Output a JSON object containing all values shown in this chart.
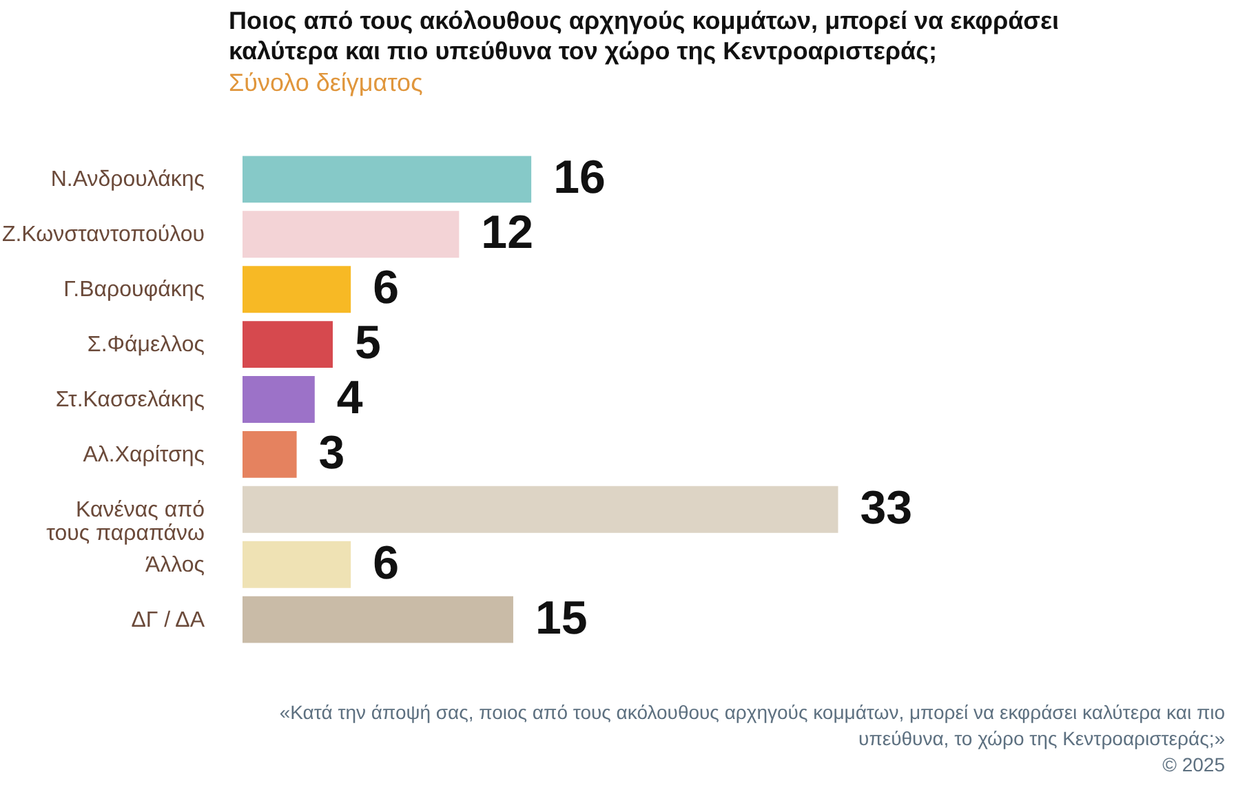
{
  "chart_data": {
    "type": "bar",
    "orientation": "horizontal",
    "title": "Ποιος από τους ακόλουθους αρχηγούς κομμάτων, μπορεί να εκφράσει καλύτερα και πιο υπεύθυνα τον χώρο της Κεντροαριστεράς;",
    "subtitle": "Σύνολο δείγματος",
    "categories": [
      "Ν.Ανδρουλάκης",
      "Ζ.Κωνσταντοπούλου",
      "Γ.Βαρουφάκης",
      "Σ.Φάμελλος",
      "Στ.Κασσελάκης",
      "Αλ.Χαρίτσης",
      "Κανένας από\nτους παραπάνω",
      "Άλλος",
      "ΔΓ / ΔΑ"
    ],
    "values": [
      16,
      12,
      6,
      5,
      4,
      3,
      33,
      6,
      15
    ],
    "colors": [
      "#86c9c8",
      "#f3d3d6",
      "#f7b925",
      "#d6494e",
      "#9c72c8",
      "#e5825f",
      "#ddd4c5",
      "#efe2b4",
      "#c9bba7"
    ],
    "data_labels": true,
    "grid": false,
    "annotations": [
      "«Κατά την άποψή σας, ποιος από τους ακόλουθους αρχηγούς κομμάτων, μπορεί να εκφράσει καλύτερα και πιο υπεύθυνα, το χώρο της Κεντροαριστεράς;»",
      "©  2025"
    ]
  }
}
